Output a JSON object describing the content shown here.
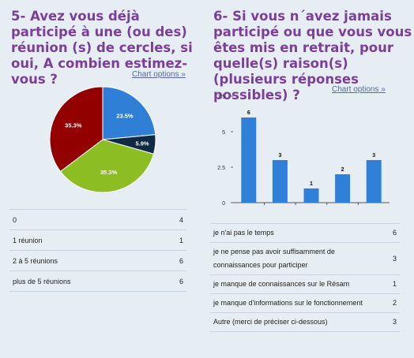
{
  "colors": {
    "title": "#7b3f9a",
    "link": "#5568a0",
    "background": "#e6eef3",
    "bar": "#2f80d8",
    "pie": [
      "#2f7fd6",
      "#112a44",
      "#8cbe24",
      "#930000"
    ]
  },
  "left": {
    "title": "5- Avez vous déjà participé à une (ou des) réunion (s) de cercles, si oui, A combien estimez-vous ?",
    "chart_options": "Chart options »",
    "rows": [
      {
        "label": "0",
        "value": "4"
      },
      {
        "label": "1 réunion",
        "value": "1"
      },
      {
        "label": "2 à 5 réunions",
        "value": "6"
      },
      {
        "label": "plus de 5 réunions",
        "value": "6"
      }
    ]
  },
  "right": {
    "title": "6- Si vous n´avez jamais participé ou que vous vous êtes mis en retrait, pour quelle(s) raison(s) (plusieurs réponses possibles) ?",
    "chart_options": "Chart options »",
    "rows": [
      {
        "label": "je n'ai pas le temps",
        "value": "6"
      },
      {
        "label": "je ne pense pas avoir suffisamment de connaissances pour participer",
        "value": "3"
      },
      {
        "label": "je manque de connaissances sur le Résam",
        "value": "1"
      },
      {
        "label": "je manque d'informations sur le fonctionnement",
        "value": "2"
      },
      {
        "label": "Autre (merci de préciser ci-dessous)",
        "value": "3"
      }
    ]
  },
  "chart_data": [
    {
      "type": "pie",
      "slices": [
        {
          "label": "23.5%",
          "value": 23.5
        },
        {
          "label": "5.9%",
          "value": 5.9
        },
        {
          "label": "35.3%",
          "value": 35.3
        },
        {
          "label": "35.3%",
          "value": 35.3
        }
      ]
    },
    {
      "type": "bar",
      "values": [
        6,
        3,
        1,
        2,
        3
      ],
      "value_labels": [
        "6",
        "3",
        "1",
        "2",
        "3"
      ],
      "ylim": [
        0,
        7.5
      ],
      "yticks": [
        "0",
        "2.5",
        "5",
        "7.5"
      ],
      "grid": false
    }
  ]
}
